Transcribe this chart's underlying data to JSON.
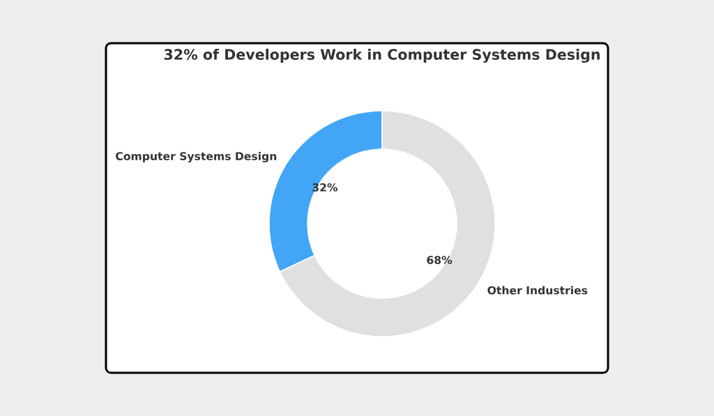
{
  "chart_data": {
    "type": "donut",
    "title": "32% of Developers Work in Computer Systems Design",
    "categories": [
      "Computer Systems Design",
      "Other Industries"
    ],
    "values": [
      32,
      68
    ],
    "colors": [
      "#42a5f5",
      "#e0e0e0"
    ],
    "value_labels": [
      "32%",
      "68%"
    ]
  }
}
